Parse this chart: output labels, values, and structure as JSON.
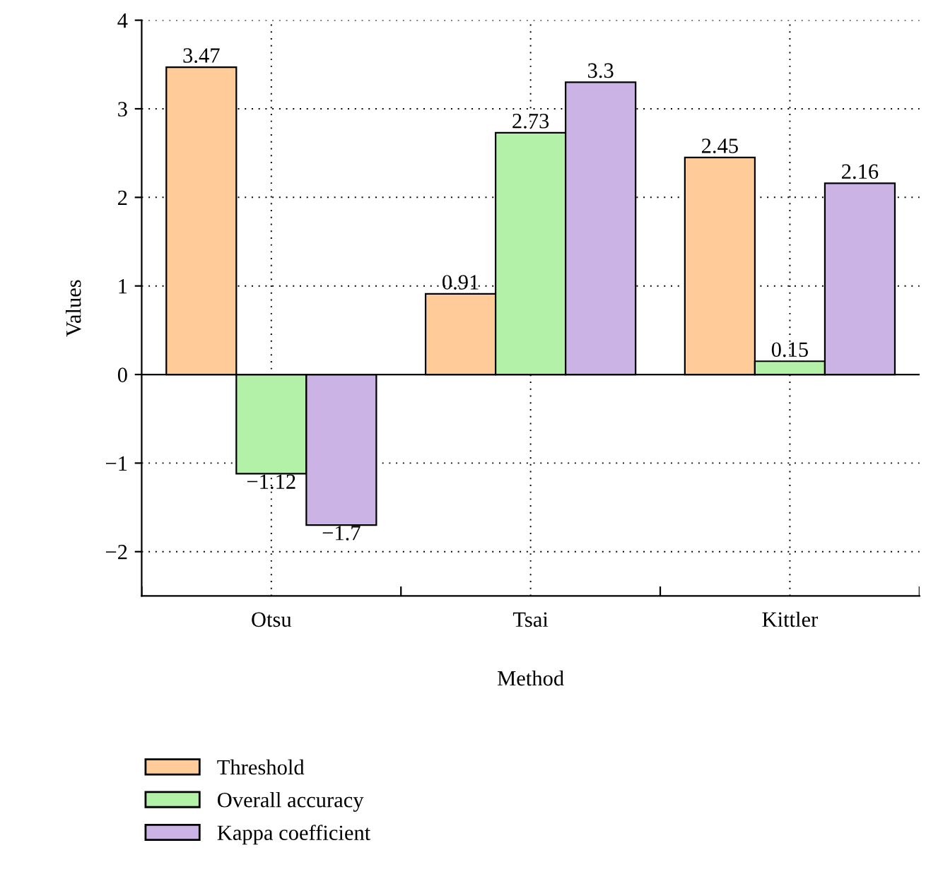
{
  "chart_data": {
    "type": "bar",
    "xlabel": "Method",
    "ylabel": "Values",
    "categories": [
      "Otsu",
      "Tsai",
      "Kittler"
    ],
    "series": [
      {
        "name": "Threshold",
        "color": "#ffcc99",
        "values": [
          3.47,
          0.91,
          2.45
        ]
      },
      {
        "name": "Overall accuracy",
        "color": "#b3f0a8",
        "values": [
          -1.12,
          2.73,
          0.15
        ]
      },
      {
        "name": "Kappa coefficient",
        "color": "#ccb3e6",
        "values": [
          -1.7,
          3.3,
          2.16
        ]
      }
    ],
    "ylim": [
      -2.5,
      4
    ],
    "yticks": [
      -2,
      -1,
      0,
      1,
      2,
      3,
      4
    ],
    "grid": true,
    "legend": "bottom",
    "data_labels": true
  }
}
